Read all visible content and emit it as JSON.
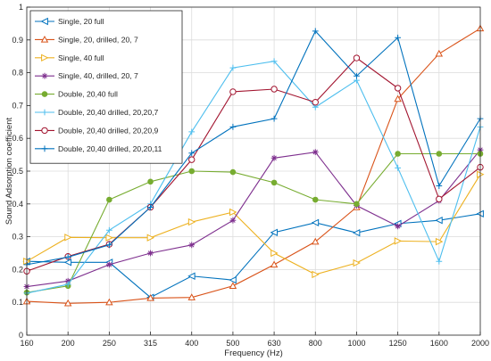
{
  "chart_data": {
    "type": "line",
    "title": "",
    "xlabel": "Frequency (Hz)",
    "ylabel": "Sound Adsorption coefficient",
    "categories": [
      "160",
      "200",
      "250",
      "315",
      "400",
      "500",
      "630",
      "800",
      "1000",
      "1250",
      "1600",
      "2000"
    ],
    "ylim": [
      0,
      1
    ],
    "yticks": [
      "0",
      "0.1",
      "0.2",
      "0.3",
      "0.4",
      "0.5",
      "0.6",
      "0.7",
      "0.8",
      "0.9",
      "1"
    ],
    "grid": true,
    "legend_position": "top-left",
    "series": [
      {
        "name": "Single, 20 full",
        "color": "#0072BD",
        "marker": "triangle-left",
        "values": [
          0.225,
          0.222,
          0.222,
          0.115,
          0.18,
          0.168,
          0.313,
          0.343,
          0.312,
          0.34,
          0.35,
          0.37
        ]
      },
      {
        "name": "Single, 20, drilled, 20, 7",
        "color": "#D95319",
        "marker": "triangle-up",
        "values": [
          0.103,
          0.097,
          0.1,
          0.113,
          0.115,
          0.15,
          0.215,
          0.285,
          0.39,
          0.72,
          0.858,
          0.935
        ]
      },
      {
        "name": "Single, 40 full",
        "color": "#EDB120",
        "marker": "triangle-right",
        "values": [
          0.225,
          0.298,
          0.297,
          0.297,
          0.345,
          0.375,
          0.25,
          0.185,
          0.22,
          0.287,
          0.285,
          0.49
        ]
      },
      {
        "name": "Single, 40, drilled, 20, 7",
        "color": "#7E2F8E",
        "marker": "star",
        "values": [
          0.148,
          0.165,
          0.215,
          0.25,
          0.275,
          0.35,
          0.54,
          0.558,
          0.395,
          0.332,
          0.41,
          0.565
        ]
      },
      {
        "name": "Double, 20,40 full",
        "color": "#77AC30",
        "marker": "circle-filled",
        "values": [
          0.13,
          0.15,
          0.413,
          0.468,
          0.5,
          0.497,
          0.465,
          0.413,
          0.4,
          0.553,
          0.553,
          0.553
        ]
      },
      {
        "name": "Double, 20,40 drilled, 20,20,7",
        "color": "#4DBEEE",
        "marker": "plus",
        "values": [
          0.128,
          0.155,
          0.32,
          0.4,
          0.62,
          0.815,
          0.835,
          0.695,
          0.777,
          0.51,
          0.225,
          0.635
        ]
      },
      {
        "name": "Double, 20,40 drilled, 20,20,9",
        "color": "#A2142F",
        "marker": "circle",
        "values": [
          0.195,
          0.24,
          0.277,
          0.39,
          0.535,
          0.742,
          0.75,
          0.71,
          0.845,
          0.753,
          0.415,
          0.512
        ]
      },
      {
        "name": "Double, 20,40 drilled, 20,20,11",
        "color": "#0072BD",
        "marker": "plus",
        "values": [
          0.215,
          0.238,
          0.275,
          0.39,
          0.555,
          0.635,
          0.66,
          0.927,
          0.79,
          0.907,
          0.455,
          0.66
        ]
      }
    ]
  }
}
